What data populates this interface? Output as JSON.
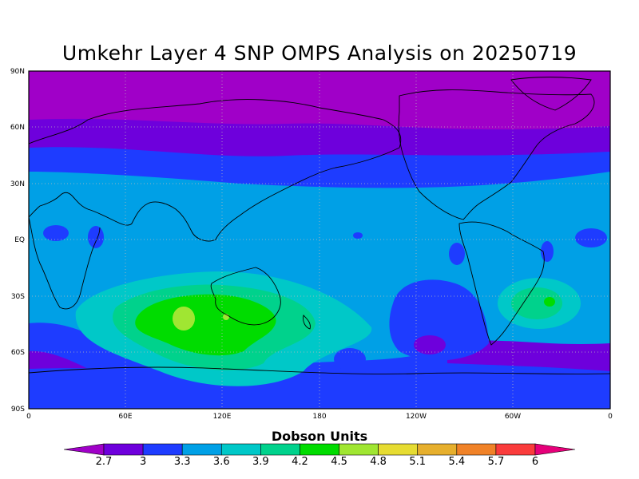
{
  "title": "Umkehr Layer 4 SNP OMPS Analysis on 20250719",
  "map": {
    "lat_labels": [
      "90N",
      "60N",
      "30N",
      "EQ",
      "30S",
      "60S",
      "90S"
    ],
    "lon_labels": [
      "0",
      "60E",
      "120E",
      "180",
      "120W",
      "60W",
      "0"
    ],
    "grid": "dotted",
    "coastlines": true
  },
  "colorbar": {
    "title": "Dobson Units",
    "ticks": [
      "2.7",
      "3",
      "3.3",
      "3.6",
      "3.9",
      "4.2",
      "4.5",
      "4.8",
      "5.1",
      "5.4",
      "5.7",
      "6"
    ],
    "colors": [
      "#a000c8",
      "#6e00dc",
      "#1e3cff",
      "#00a0e6",
      "#00c8c8",
      "#00d28c",
      "#00dc00",
      "#a0e632",
      "#e6dc32",
      "#e6af2d",
      "#f08228",
      "#fa3c3c",
      "#e6007a"
    ]
  },
  "chart_data": {
    "type": "heatmap",
    "title": "Umkehr Layer 4 SNP OMPS Analysis on 20250719",
    "xlabel": "",
    "ylabel": "",
    "x_ticks": [
      "0",
      "60E",
      "120E",
      "180",
      "120W",
      "60W",
      "0"
    ],
    "y_ticks": [
      "90N",
      "60N",
      "30N",
      "EQ",
      "30S",
      "60S",
      "90S"
    ],
    "xlim": [
      0,
      360
    ],
    "ylim": [
      -90,
      90
    ],
    "colorbar_label": "Dobson Units",
    "levels": [
      2.7,
      3.0,
      3.3,
      3.6,
      3.9,
      4.2,
      4.5,
      4.8,
      5.1,
      5.4,
      5.7,
      6.0
    ],
    "features": [
      {
        "label": "polar maximum-low region",
        "lat_range": [
          65,
          90
        ],
        "value": "<3"
      },
      {
        "label": "southern hemisphere maximum",
        "lat": -40,
        "lon": 98,
        "value": "~4.5-4.8"
      },
      {
        "label": "south atlantic maximum",
        "lat": -33,
        "lon": 322,
        "value": "~4.2"
      },
      {
        "label": "tropical band",
        "lat_range": [
          -20,
          30
        ],
        "value": "~3.3-3.6"
      },
      {
        "label": "south pacific minimum",
        "lat": -55,
        "lon": 250,
        "value": "~3.0"
      }
    ],
    "grid": true
  }
}
